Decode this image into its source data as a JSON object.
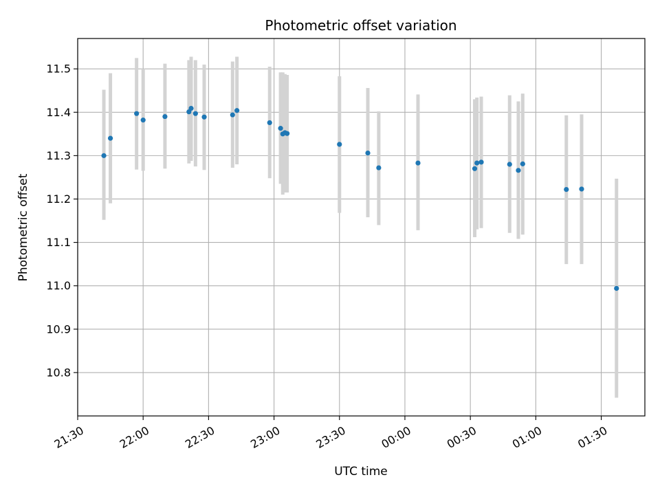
{
  "chart_data": {
    "type": "scatter",
    "title": "Photometric offset variation",
    "xlabel": "UTC time",
    "ylabel": "Photometric offset",
    "x_tick_labels": [
      "21:30",
      "22:00",
      "22:30",
      "23:00",
      "23:30",
      "00:00",
      "00:30",
      "01:00",
      "01:30"
    ],
    "y_tick_labels": [
      "10.8",
      "10.9",
      "11.0",
      "11.1",
      "11.2",
      "11.3",
      "11.4",
      "11.5"
    ],
    "xlim": [
      "21:30",
      "01:50"
    ],
    "ylim": [
      10.7,
      11.57
    ],
    "grid": true,
    "legend": "none",
    "colors": {
      "point": "#1f77b4",
      "errorbar": "#d3d3d3",
      "grid": "#b0b0b0"
    },
    "points": [
      {
        "t": "21:42",
        "y": 11.3,
        "lo": 11.152,
        "hi": 11.452
      },
      {
        "t": "21:45",
        "y": 11.34,
        "lo": 11.19,
        "hi": 11.49
      },
      {
        "t": "21:57",
        "y": 11.397,
        "lo": 11.268,
        "hi": 11.525
      },
      {
        "t": "22:00",
        "y": 11.382,
        "lo": 11.265,
        "hi": 11.5
      },
      {
        "t": "22:10",
        "y": 11.39,
        "lo": 11.27,
        "hi": 11.512
      },
      {
        "t": "22:21",
        "y": 11.401,
        "lo": 11.282,
        "hi": 11.52
      },
      {
        "t": "22:22",
        "y": 11.409,
        "lo": 11.288,
        "hi": 11.528
      },
      {
        "t": "22:24",
        "y": 11.397,
        "lo": 11.275,
        "hi": 11.52
      },
      {
        "t": "22:28",
        "y": 11.389,
        "lo": 11.267,
        "hi": 11.51
      },
      {
        "t": "22:41",
        "y": 11.394,
        "lo": 11.272,
        "hi": 11.517
      },
      {
        "t": "22:43",
        "y": 11.404,
        "lo": 11.28,
        "hi": 11.528
      },
      {
        "t": "22:58",
        "y": 11.376,
        "lo": 11.248,
        "hi": 11.505
      },
      {
        "t": "23:03",
        "y": 11.363,
        "lo": 11.235,
        "hi": 11.492
      },
      {
        "t": "23:04",
        "y": 11.35,
        "lo": 11.21,
        "hi": 11.492
      },
      {
        "t": "23:05",
        "y": 11.353,
        "lo": 11.215,
        "hi": 11.488
      },
      {
        "t": "23:06",
        "y": 11.351,
        "lo": 11.215,
        "hi": 11.486
      },
      {
        "t": "23:30",
        "y": 11.326,
        "lo": 11.168,
        "hi": 11.483
      },
      {
        "t": "23:43",
        "y": 11.306,
        "lo": 11.158,
        "hi": 11.456
      },
      {
        "t": "23:48",
        "y": 11.272,
        "lo": 11.14,
        "hi": 11.402
      },
      {
        "t": "00:06",
        "y": 11.283,
        "lo": 11.128,
        "hi": 11.441
      },
      {
        "t": "00:32",
        "y": 11.27,
        "lo": 11.112,
        "hi": 11.43
      },
      {
        "t": "00:33",
        "y": 11.283,
        "lo": 11.13,
        "hi": 11.434
      },
      {
        "t": "00:35",
        "y": 11.285,
        "lo": 11.133,
        "hi": 11.436
      },
      {
        "t": "00:48",
        "y": 11.28,
        "lo": 11.122,
        "hi": 11.439
      },
      {
        "t": "00:52",
        "y": 11.266,
        "lo": 11.108,
        "hi": 11.425
      },
      {
        "t": "00:54",
        "y": 11.281,
        "lo": 11.118,
        "hi": 11.443
      },
      {
        "t": "01:14",
        "y": 11.222,
        "lo": 11.05,
        "hi": 11.393
      },
      {
        "t": "01:21",
        "y": 11.223,
        "lo": 11.05,
        "hi": 11.395
      },
      {
        "t": "01:37",
        "y": 10.994,
        "lo": 10.742,
        "hi": 11.247
      }
    ]
  }
}
